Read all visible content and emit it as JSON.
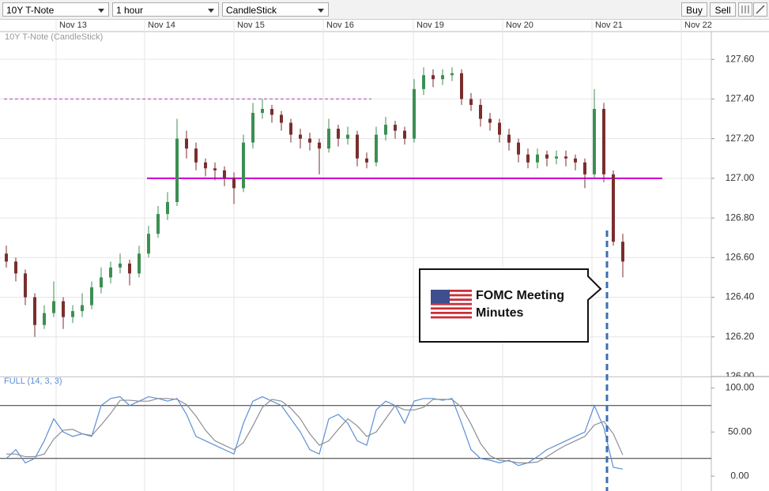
{
  "toolbar": {
    "instrument": "10Y T-Note",
    "interval": "1 hour",
    "chart_type": "CandleStick",
    "buttons": [
      "Buy",
      "Sell"
    ]
  },
  "chart_data": [
    {
      "type": "candlestick",
      "title": "10Y T-Note (CandleStick)",
      "x_labels": [
        "Nov 13",
        "Nov 14",
        "Nov 15",
        "Nov 16",
        "Nov 19",
        "Nov 20",
        "Nov 21",
        "Nov 22"
      ],
      "open": [
        126.62,
        126.58,
        126.52,
        126.4,
        126.26,
        126.32,
        126.38,
        126.3,
        126.33,
        126.36,
        126.45,
        126.5,
        126.55,
        126.57,
        126.52,
        126.62,
        126.72,
        126.82,
        126.88,
        127.2,
        127.15,
        127.08,
        127.05,
        127.04,
        127.0,
        126.95,
        127.18,
        127.33,
        127.35,
        127.32,
        127.28,
        127.22,
        127.2,
        127.18,
        127.15,
        127.25,
        127.2,
        127.22,
        127.1,
        127.08,
        127.22,
        127.27,
        127.24,
        127.2,
        127.45,
        127.52,
        127.5,
        127.52,
        127.53,
        127.4,
        127.37,
        127.3,
        127.28,
        127.22,
        127.18,
        127.12,
        127.08,
        127.12,
        127.1,
        127.11,
        127.1,
        127.08,
        127.02,
        127.35,
        127.02,
        126.68
      ],
      "high": [
        126.66,
        126.6,
        126.54,
        126.42,
        126.36,
        126.48,
        126.4,
        126.36,
        126.42,
        126.48,
        126.55,
        126.58,
        126.62,
        126.59,
        126.66,
        126.76,
        126.86,
        126.93,
        127.3,
        127.24,
        127.18,
        127.1,
        127.08,
        127.06,
        127.03,
        127.22,
        127.38,
        127.4,
        127.37,
        127.34,
        127.3,
        127.25,
        127.23,
        127.2,
        127.3,
        127.27,
        127.26,
        127.24,
        127.13,
        127.26,
        127.31,
        127.29,
        127.26,
        127.5,
        127.56,
        127.55,
        127.55,
        127.56,
        127.55,
        127.43,
        127.4,
        127.33,
        127.3,
        127.25,
        127.2,
        127.15,
        127.15,
        127.14,
        127.14,
        127.14,
        127.12,
        127.1,
        127.45,
        127.38,
        127.04,
        126.72
      ],
      "low": [
        126.55,
        126.48,
        126.36,
        126.2,
        126.24,
        126.3,
        126.24,
        126.27,
        126.3,
        126.34,
        126.42,
        126.47,
        126.52,
        126.46,
        126.5,
        126.6,
        126.7,
        126.79,
        126.86,
        127.1,
        127.04,
        127.01,
        126.99,
        126.96,
        126.87,
        126.93,
        127.15,
        127.3,
        127.28,
        127.24,
        127.18,
        127.15,
        127.14,
        127.02,
        127.13,
        127.16,
        127.17,
        127.06,
        127.05,
        127.06,
        127.19,
        127.2,
        127.17,
        127.18,
        127.42,
        127.46,
        127.47,
        127.49,
        127.37,
        127.34,
        127.26,
        127.24,
        127.18,
        127.14,
        127.08,
        127.05,
        127.05,
        127.06,
        127.07,
        127.06,
        127.04,
        126.95,
        127.0,
        126.98,
        126.66,
        126.5
      ],
      "close": [
        126.58,
        126.52,
        126.4,
        126.26,
        126.32,
        126.38,
        126.3,
        126.33,
        126.36,
        126.45,
        126.5,
        126.55,
        126.57,
        126.52,
        126.62,
        126.72,
        126.82,
        126.88,
        127.2,
        127.15,
        127.08,
        127.05,
        127.04,
        127.0,
        126.95,
        127.18,
        127.33,
        127.35,
        127.32,
        127.28,
        127.22,
        127.2,
        127.18,
        127.15,
        127.25,
        127.2,
        127.22,
        127.1,
        127.08,
        127.22,
        127.27,
        127.24,
        127.2,
        127.45,
        127.52,
        127.5,
        127.52,
        127.53,
        127.4,
        127.37,
        127.3,
        127.28,
        127.22,
        127.18,
        127.12,
        127.08,
        127.12,
        127.1,
        127.11,
        127.1,
        127.08,
        127.02,
        127.35,
        127.02,
        126.68,
        126.58
      ],
      "up_color": "#3c8f52",
      "down_color": "#7a2e2e",
      "ylim": [
        126.0,
        127.74
      ],
      "yticks": [
        {
          "value": 126.0,
          "label": "126.00"
        },
        {
          "value": 126.2,
          "label": "126.20"
        },
        {
          "value": 126.4,
          "label": "126.40"
        },
        {
          "value": 126.6,
          "label": "126.60"
        },
        {
          "value": 126.8,
          "label": "126.80"
        },
        {
          "value": 127.0,
          "label": "127.00"
        },
        {
          "value": 127.2,
          "label": "127.20"
        },
        {
          "value": 127.4,
          "label": "127.40"
        },
        {
          "value": 127.6,
          "label": "127.60"
        }
      ],
      "reference_lines": [
        {
          "value": 127.4,
          "style": "dashed",
          "color": "#b040c0"
        },
        {
          "value": 127.0,
          "style": "solid",
          "color": "#cc00cc"
        }
      ],
      "annotation": "FOMC Meeting Minutes"
    },
    {
      "type": "line",
      "title": "FULL (14, 3, 3)",
      "series": [
        {
          "color": "#5b8fd6",
          "values": [
            20,
            30,
            15,
            20,
            40,
            65,
            50,
            45,
            48,
            45,
            80,
            88,
            90,
            80,
            85,
            90,
            88,
            85,
            88,
            70,
            45,
            40,
            35,
            30,
            25,
            60,
            85,
            90,
            85,
            80,
            65,
            50,
            30,
            25,
            65,
            70,
            60,
            40,
            35,
            75,
            85,
            80,
            60,
            85,
            88,
            88,
            86,
            88,
            60,
            30,
            20,
            18,
            15,
            18,
            12,
            15,
            22,
            30,
            35,
            40,
            45,
            50,
            80,
            55,
            10,
            8
          ]
        },
        {
          "color": "#8a8f96",
          "values": [
            25,
            25,
            22,
            22,
            25,
            42,
            52,
            53,
            48,
            46,
            58,
            71,
            86,
            86,
            85,
            85,
            88,
            88,
            87,
            81,
            68,
            52,
            40,
            35,
            30,
            38,
            57,
            78,
            87,
            85,
            77,
            65,
            48,
            35,
            40,
            53,
            65,
            57,
            45,
            50,
            65,
            80,
            75,
            75,
            78,
            87,
            87,
            87,
            78,
            59,
            37,
            23,
            18,
            17,
            15,
            15,
            16,
            22,
            29,
            35,
            40,
            45,
            58,
            62,
            48,
            24
          ]
        }
      ],
      "ylim": [
        -16,
        112
      ],
      "yticks": [
        {
          "value": 0,
          "label": "0.00"
        },
        {
          "value": 50,
          "label": "50.00"
        },
        {
          "value": 100,
          "label": "100.00"
        }
      ],
      "reference_lines": [
        80,
        20
      ]
    }
  ]
}
